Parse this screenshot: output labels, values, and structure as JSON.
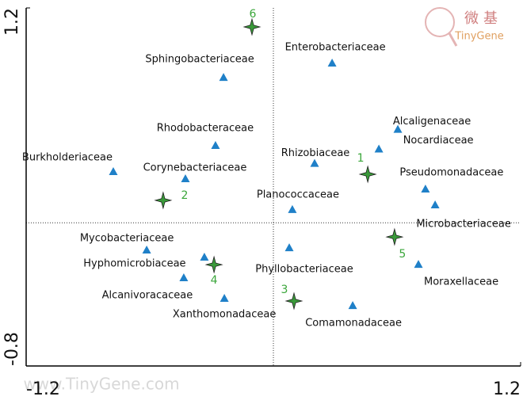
{
  "chart_data": {
    "type": "scatter",
    "xlim": [
      -1.2,
      1.2
    ],
    "xticks": [
      -1.2,
      1.2
    ],
    "ylim": [
      -0.8,
      1.2
    ],
    "yticks": [
      -0.8,
      1.2
    ],
    "series": [
      {
        "marker": "triangle",
        "color": "#1f80c8",
        "labels": [
          "Enterobacteriaceae",
          "Sphingobacteriaceae",
          "Alcaligenaceae",
          "Rhodobacteraceae",
          "Nocardiaceae",
          "Rhizobiaceae",
          "Burkholderiaceae",
          "Corynebacteriaceae",
          "Pseudomonadaceae",
          "Microbacteriaceae",
          "Planococcaceae",
          "Mycobacteriaceae",
          "Hyphomicrobiaceae",
          "Alcanivoracaceae",
          "Phyllobacteriaceae",
          "Moraxellaceae",
          "Xanthomonadaceae",
          "Comamonadaceae"
        ],
        "x": [
          0.285,
          -0.242,
          0.604,
          -0.281,
          0.512,
          0.2,
          -0.777,
          -0.427,
          0.738,
          0.785,
          0.092,
          -0.615,
          -0.335,
          -0.435,
          0.077,
          0.704,
          -0.238,
          0.385
        ],
        "y": [
          0.89,
          0.81,
          0.52,
          0.43,
          0.41,
          0.33,
          0.284,
          0.244,
          0.187,
          0.098,
          0.072,
          -0.154,
          -0.194,
          -0.309,
          -0.141,
          -0.234,
          -0.424,
          -0.464
        ]
      },
      {
        "marker": "star",
        "color": "#3a9a3a",
        "labels": [
          "1",
          "2",
          "3",
          "4",
          "5",
          "6"
        ],
        "x": [
          0.458,
          -0.535,
          0.1,
          -0.288,
          0.588,
          -0.104
        ],
        "y": [
          0.271,
          0.125,
          -0.437,
          -0.234,
          -0.079,
          1.094
        ]
      }
    ]
  },
  "watermark": "www.TinyGene.com",
  "logo": {
    "cn": "微基",
    "en": "TinyGene"
  }
}
